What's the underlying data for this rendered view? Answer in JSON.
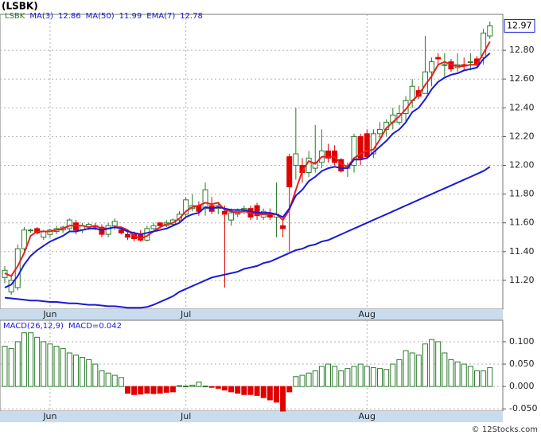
{
  "footer": "© 12Stocks.com",
  "chart_data": [
    {
      "type": "candlestick",
      "title": "(LSBK)",
      "ticker": "LSBK",
      "categories": [
        null,
        null,
        null,
        null,
        null,
        null,
        null,
        "Jun",
        null,
        null,
        null,
        null,
        null,
        null,
        null,
        null,
        null,
        null,
        null,
        null,
        null,
        null,
        null,
        null,
        null,
        null,
        null,
        null,
        "Jul",
        null,
        null,
        null,
        null,
        null,
        null,
        null,
        null,
        null,
        null,
        null,
        null,
        null,
        null,
        null,
        null,
        null,
        null,
        null,
        null,
        null,
        null,
        null,
        null,
        null,
        null,
        null,
        "Aug",
        null,
        null,
        null,
        null,
        null,
        null,
        null,
        null,
        null,
        null,
        null,
        null,
        null,
        null,
        null,
        null,
        null,
        null,
        null
      ],
      "open": [
        11.22,
        11.12,
        11.15,
        11.42,
        11.55,
        11.56,
        11.5,
        11.52,
        11.54,
        11.55,
        11.56,
        11.6,
        11.55,
        11.57,
        11.58,
        11.57,
        11.52,
        11.58,
        11.55,
        11.52,
        11.52,
        11.52,
        11.48,
        11.56,
        11.6,
        11.58,
        11.59,
        11.62,
        11.66,
        11.7,
        11.72,
        11.7,
        11.72,
        11.7,
        11.68,
        11.62,
        11.66,
        11.68,
        11.7,
        11.72,
        11.64,
        11.66,
        11.64,
        11.58,
        12.06,
        12.0,
        12.0,
        11.95,
        11.98,
        12.02,
        12.1,
        12.1,
        12.04,
        11.98,
        12.0,
        12.2,
        12.22,
        12.08,
        12.22,
        12.25,
        12.3,
        12.3,
        12.36,
        12.45,
        12.52,
        12.5,
        12.65,
        12.75,
        12.7,
        12.72,
        12.68,
        12.7,
        12.72,
        12.74,
        12.75,
        12.9
      ],
      "high": [
        11.3,
        11.24,
        11.45,
        11.57,
        11.56,
        11.57,
        11.55,
        11.56,
        11.58,
        11.58,
        11.63,
        11.62,
        11.6,
        11.6,
        11.6,
        11.59,
        11.6,
        11.63,
        11.56,
        11.55,
        11.54,
        11.55,
        11.58,
        11.6,
        11.6,
        11.62,
        11.63,
        11.68,
        11.78,
        11.8,
        11.75,
        11.88,
        11.78,
        11.74,
        11.72,
        11.7,
        11.7,
        11.72,
        11.72,
        11.74,
        11.7,
        11.7,
        11.88,
        11.62,
        12.08,
        12.4,
        12.05,
        12.1,
        12.28,
        12.25,
        12.15,
        12.14,
        12.05,
        12.02,
        12.22,
        12.22,
        12.25,
        12.25,
        12.3,
        12.32,
        12.4,
        12.42,
        12.48,
        12.6,
        12.55,
        12.9,
        12.75,
        12.78,
        12.78,
        12.74,
        12.78,
        12.75,
        12.78,
        12.76,
        12.95,
        13.0
      ],
      "low": [
        11.18,
        11.1,
        11.13,
        11.4,
        11.53,
        11.52,
        11.48,
        11.5,
        11.52,
        11.53,
        11.54,
        11.52,
        11.53,
        11.55,
        11.55,
        11.5,
        11.5,
        11.55,
        11.52,
        11.48,
        11.47,
        11.47,
        11.47,
        11.55,
        11.56,
        11.57,
        11.58,
        11.6,
        11.64,
        11.68,
        11.65,
        11.65,
        11.66,
        11.66,
        11.15,
        11.58,
        11.64,
        11.66,
        11.62,
        11.62,
        11.62,
        11.62,
        11.5,
        11.5,
        11.4,
        11.9,
        11.88,
        11.92,
        11.95,
        11.98,
        12.02,
        12.0,
        11.95,
        11.92,
        11.95,
        12.0,
        12.05,
        12.05,
        12.18,
        12.2,
        12.25,
        12.28,
        12.3,
        12.4,
        12.46,
        12.5,
        12.55,
        12.7,
        12.62,
        12.65,
        12.65,
        12.66,
        12.66,
        12.68,
        12.7,
        12.88
      ],
      "close": [
        11.27,
        11.2,
        11.42,
        11.55,
        11.55,
        11.53,
        11.54,
        11.55,
        11.56,
        11.57,
        11.62,
        11.55,
        11.58,
        11.59,
        11.57,
        11.52,
        11.58,
        11.61,
        11.53,
        11.5,
        11.49,
        11.48,
        11.56,
        11.58,
        11.58,
        11.6,
        11.62,
        11.66,
        11.76,
        11.72,
        11.68,
        11.83,
        11.68,
        11.72,
        11.66,
        11.67,
        11.68,
        11.7,
        11.64,
        11.65,
        11.68,
        11.64,
        11.66,
        11.56,
        11.85,
        12.08,
        11.95,
        12.05,
        12.02,
        12.1,
        12.05,
        12.02,
        11.96,
        11.99,
        12.2,
        12.05,
        12.06,
        12.22,
        12.25,
        12.3,
        12.35,
        12.36,
        12.45,
        12.55,
        12.48,
        12.65,
        12.72,
        12.74,
        12.7,
        12.67,
        12.7,
        12.69,
        12.72,
        12.7,
        12.92,
        12.97
      ],
      "up_color": "#2a7a2a",
      "down_color": "#e00000",
      "series": [
        {
          "name": "MA(3)",
          "color": "#e82020",
          "values": [
            11.25,
            11.23,
            11.3,
            11.39,
            11.51,
            11.54,
            11.54,
            11.54,
            11.55,
            11.56,
            11.58,
            11.58,
            11.58,
            11.57,
            11.58,
            11.56,
            11.56,
            11.57,
            11.57,
            11.55,
            11.51,
            11.49,
            11.51,
            11.54,
            11.57,
            11.59,
            11.6,
            11.63,
            11.68,
            11.71,
            11.72,
            11.74,
            11.73,
            11.74,
            11.69,
            11.68,
            11.67,
            11.68,
            11.67,
            11.66,
            11.66,
            11.66,
            11.66,
            11.62,
            11.69,
            11.83,
            11.96,
            12.03,
            12.01,
            12.06,
            12.06,
            12.06,
            12.01,
            11.99,
            12.05,
            12.08,
            12.1,
            12.11,
            12.18,
            12.26,
            12.3,
            12.34,
            12.39,
            12.45,
            12.49,
            12.56,
            12.62,
            12.7,
            12.72,
            12.7,
            12.69,
            12.69,
            12.7,
            12.7,
            12.78,
            12.86
          ]
        },
        {
          "name": "MA(50)",
          "color": "#1a1ad8",
          "values": [
            11.08,
            11.075,
            11.07,
            11.065,
            11.06,
            11.06,
            11.055,
            11.05,
            11.05,
            11.045,
            11.04,
            11.04,
            11.035,
            11.03,
            11.03,
            11.025,
            11.02,
            11.02,
            11.015,
            11.01,
            11.01,
            11.01,
            11.015,
            11.03,
            11.05,
            11.07,
            11.09,
            11.12,
            11.14,
            11.16,
            11.18,
            11.2,
            11.22,
            11.23,
            11.24,
            11.25,
            11.26,
            11.28,
            11.29,
            11.3,
            11.32,
            11.33,
            11.35,
            11.37,
            11.39,
            11.41,
            11.42,
            11.44,
            11.45,
            11.47,
            11.48,
            11.5,
            11.52,
            11.54,
            11.56,
            11.58,
            11.6,
            11.62,
            11.64,
            11.66,
            11.68,
            11.7,
            11.72,
            11.74,
            11.76,
            11.78,
            11.8,
            11.82,
            11.84,
            11.86,
            11.88,
            11.9,
            11.92,
            11.94,
            11.96,
            11.99
          ]
        },
        {
          "name": "EMA(7)",
          "color": "#1a1ad8",
          "values": [
            11.15,
            11.17,
            11.23,
            11.31,
            11.37,
            11.41,
            11.44,
            11.47,
            11.49,
            11.51,
            11.54,
            11.54,
            11.55,
            11.56,
            11.56,
            11.55,
            11.56,
            11.57,
            11.56,
            11.54,
            11.53,
            11.52,
            11.53,
            11.54,
            11.55,
            11.56,
            11.58,
            11.6,
            11.64,
            11.66,
            11.67,
            11.71,
            11.7,
            11.71,
            11.7,
            11.69,
            11.69,
            11.69,
            11.68,
            11.67,
            11.67,
            11.67,
            11.66,
            11.64,
            11.7,
            11.79,
            11.83,
            11.89,
            11.92,
            11.96,
            11.98,
            11.99,
            11.98,
            11.98,
            12.04,
            12.04,
            12.05,
            12.09,
            12.13,
            12.17,
            12.22,
            12.25,
            12.3,
            12.37,
            12.4,
            12.46,
            12.53,
            12.58,
            12.61,
            12.63,
            12.64,
            12.66,
            12.67,
            12.68,
            12.74,
            12.78
          ]
        }
      ],
      "ylim": [
        11.0,
        13.05
      ],
      "yticks": [
        {
          "value": 11.2,
          "label": "11.20"
        },
        {
          "value": 11.4,
          "label": "11.40"
        },
        {
          "value": 11.6,
          "label": "11.60"
        },
        {
          "value": 11.8,
          "label": "11.80"
        },
        {
          "value": 12.0,
          "label": "12.00"
        },
        {
          "value": 12.2,
          "label": "12.20"
        },
        {
          "value": 12.4,
          "label": "12.40"
        },
        {
          "value": 12.6,
          "label": "12.60"
        },
        {
          "value": 12.8,
          "label": "12.80"
        }
      ],
      "grid": true
    },
    {
      "type": "bar",
      "name": "MACD(26,12,9)",
      "value_prefix": "MACD=",
      "values": [
        0.09,
        0.085,
        0.1,
        0.12,
        0.12,
        0.11,
        0.1,
        0.095,
        0.09,
        0.085,
        0.075,
        0.07,
        0.065,
        0.06,
        0.05,
        0.035,
        0.03,
        0.025,
        0.02,
        -0.015,
        -0.018,
        -0.017,
        -0.015,
        -0.016,
        -0.015,
        -0.013,
        -0.012,
        0.002,
        0.001,
        0.003,
        0.01,
        0.001,
        -0.002,
        -0.004,
        -0.008,
        -0.012,
        -0.015,
        -0.018,
        -0.018,
        -0.02,
        -0.025,
        -0.03,
        -0.035,
        -0.055,
        -0.012,
        0.022,
        0.025,
        0.03,
        0.035,
        0.045,
        0.05,
        0.045,
        0.035,
        0.04,
        0.045,
        0.05,
        0.045,
        0.042,
        0.04,
        0.038,
        0.05,
        0.06,
        0.08,
        0.075,
        0.07,
        0.095,
        0.105,
        0.1,
        0.075,
        0.06,
        0.055,
        0.05,
        0.045,
        0.035,
        0.035,
        0.042
      ],
      "up_color": "#2a7a2a",
      "down_color": "#e00000",
      "ylim": [
        -0.055,
        0.148
      ],
      "yticks": [
        {
          "value": -0.05,
          "label": "-0.050"
        },
        {
          "value": 0,
          "label": "0.000"
        },
        {
          "value": 0.05,
          "label": "0.050"
        },
        {
          "value": 0.1,
          "label": "0.100"
        }
      ],
      "grid": true
    }
  ]
}
